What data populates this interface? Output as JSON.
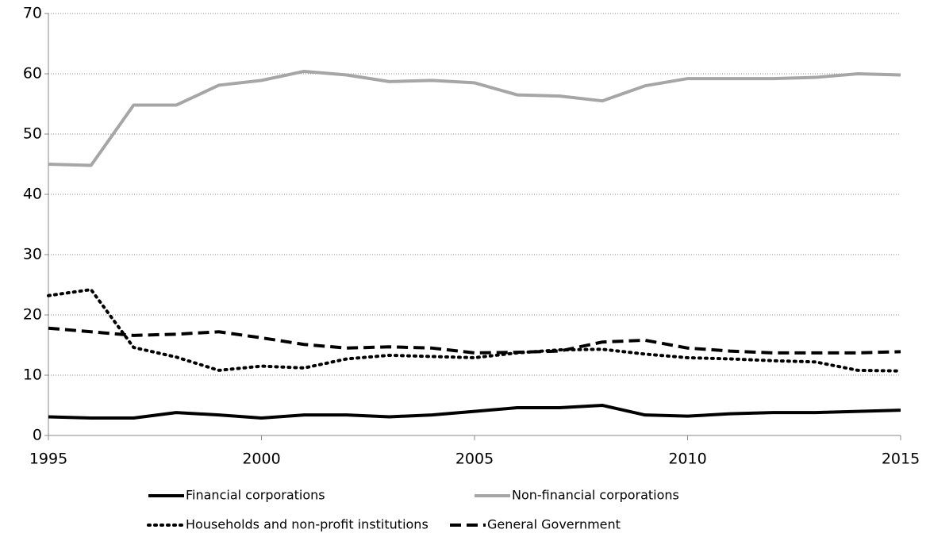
{
  "chart_data": {
    "type": "line",
    "x": [
      1995,
      1996,
      1997,
      1998,
      1999,
      2000,
      2001,
      2002,
      2003,
      2004,
      2005,
      2006,
      2007,
      2008,
      2009,
      2010,
      2011,
      2012,
      2013,
      2014,
      2015
    ],
    "xlim": [
      1995,
      2015
    ],
    "xticks": [
      1995,
      2000,
      2005,
      2010,
      2015
    ],
    "ylim": [
      0,
      70
    ],
    "yticks": [
      0,
      10,
      20,
      30,
      40,
      50,
      60,
      70
    ],
    "grid": true,
    "series": [
      {
        "name": "Financial corporations",
        "color": "#000000",
        "dash": "solid",
        "values": [
          3.1,
          2.9,
          2.9,
          3.8,
          3.4,
          2.9,
          3.4,
          3.4,
          3.1,
          3.4,
          4.0,
          4.6,
          4.6,
          5.0,
          3.4,
          3.2,
          3.6,
          3.8,
          3.8,
          4.0,
          4.2
        ]
      },
      {
        "name": "Non-financial corporations",
        "color": "#a6a6a6",
        "dash": "solid",
        "values": [
          45.0,
          44.8,
          54.8,
          54.8,
          58.1,
          58.9,
          60.4,
          59.8,
          58.7,
          58.9,
          58.5,
          56.5,
          56.3,
          55.5,
          58.0,
          59.2,
          59.2,
          59.2,
          59.4,
          60.0,
          59.8
        ]
      },
      {
        "name": "Households and non-profit institutions",
        "color": "#000000",
        "dash": "dotted",
        "values": [
          23.2,
          24.2,
          14.6,
          13.0,
          10.8,
          11.5,
          11.2,
          12.7,
          13.3,
          13.1,
          12.9,
          13.7,
          14.2,
          14.3,
          13.5,
          12.9,
          12.7,
          12.4,
          12.2,
          10.8,
          10.7
        ]
      },
      {
        "name": "General Government",
        "color": "#000000",
        "dash": "dashed",
        "values": [
          17.8,
          17.2,
          16.6,
          16.8,
          17.2,
          16.2,
          15.1,
          14.5,
          14.7,
          14.5,
          13.7,
          13.8,
          14.0,
          15.5,
          15.8,
          14.5,
          14.0,
          13.7,
          13.7,
          13.7,
          13.9
        ]
      }
    ]
  }
}
